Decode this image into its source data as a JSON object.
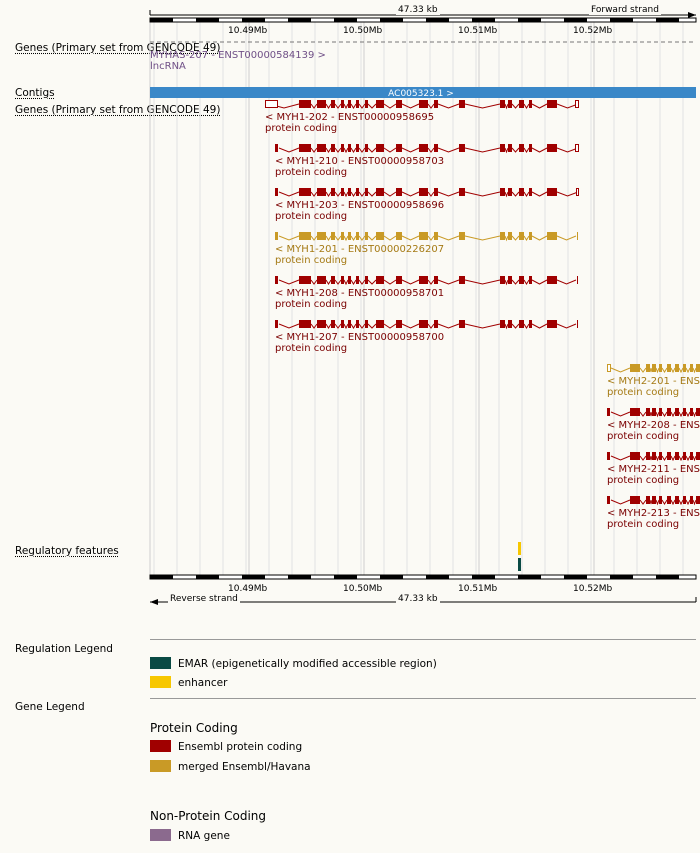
{
  "colors": {
    "ensembl": "#a00000",
    "merged": "#c99a26",
    "lncrna": "#6f4f86",
    "rna_gene": "#8b6a8e",
    "contig": "#3a88c8",
    "emar": "#0a4a44",
    "enhancer": "#f7c700"
  },
  "ruler": {
    "top_span": "47.33 kb",
    "top_strand": "Forward strand",
    "bottom_span": "47.33 kb",
    "bottom_strand": "Reverse strand",
    "ticks": [
      "10.49Mb",
      "10.50Mb",
      "10.51Mb",
      "10.52Mb"
    ]
  },
  "tracks": {
    "genes_primary_1": "Genes (Primary set from GENCODE 49)",
    "contigs": "Contigs",
    "genes_primary_2": "Genes (Primary set from GENCODE 49)",
    "regulatory": "Regulatory features"
  },
  "lnc": {
    "name": "MYHAS-207 - ENST00000584139 >",
    "biotype": "lncRNA"
  },
  "contig": {
    "label": "AC005323.1 >"
  },
  "transcripts": [
    {
      "name": "< MYH1-202 - ENST00000958695",
      "biotype": "protein coding",
      "type": "ensembl"
    },
    {
      "name": "< MYH1-210 - ENST00000958703",
      "biotype": "protein coding",
      "type": "ensembl"
    },
    {
      "name": "< MYH1-203 - ENST00000958696",
      "biotype": "protein coding",
      "type": "ensembl"
    },
    {
      "name": "< MYH1-201 - ENST00000226207",
      "biotype": "protein coding",
      "type": "merged"
    },
    {
      "name": "< MYH1-208 - ENST00000958701",
      "biotype": "protein coding",
      "type": "ensembl"
    },
    {
      "name": "< MYH1-207 - ENST00000958700",
      "biotype": "protein coding",
      "type": "ensembl"
    },
    {
      "name": "< MYH2-201 - ENS",
      "biotype": "protein coding",
      "type": "merged"
    },
    {
      "name": "< MYH2-208 - ENS",
      "biotype": "protein coding",
      "type": "ensembl"
    },
    {
      "name": "< MYH2-211 - ENS",
      "biotype": "protein coding",
      "type": "ensembl"
    },
    {
      "name": "< MYH2-213 - ENS",
      "biotype": "protein coding",
      "type": "ensembl"
    }
  ],
  "legend": {
    "regulation_title": "Regulation Legend",
    "emar": "EMAR (epigenetically modified accessible region)",
    "enhancer": "enhancer",
    "gene_title": "Gene Legend",
    "protein_coding": "Protein Coding",
    "ensembl_pc": "Ensembl protein coding",
    "merged": "merged Ensembl/Havana",
    "non_protein_coding": "Non-Protein Coding",
    "rna_gene": "RNA gene"
  }
}
